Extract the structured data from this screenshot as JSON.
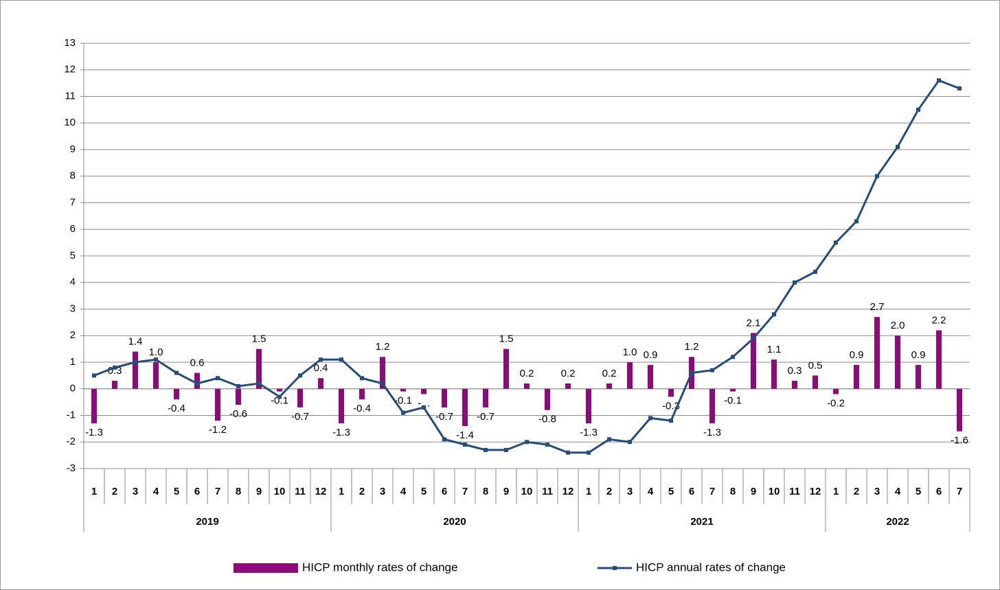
{
  "chart_data": {
    "type": "bar-line",
    "groups": [
      {
        "label": "2019",
        "categories": [
          "1",
          "2",
          "3",
          "4",
          "5",
          "6",
          "7",
          "8",
          "9",
          "10",
          "11",
          "12"
        ]
      },
      {
        "label": "2020",
        "categories": [
          "1",
          "2",
          "3",
          "4",
          "5",
          "6",
          "7",
          "8",
          "9",
          "10",
          "11",
          "12"
        ]
      },
      {
        "label": "2021",
        "categories": [
          "1",
          "2",
          "3",
          "4",
          "5",
          "6",
          "7",
          "8",
          "9",
          "10",
          "11",
          "12"
        ]
      },
      {
        "label": "2022",
        "categories": [
          "1",
          "2",
          "3",
          "4",
          "5",
          "6",
          "7"
        ]
      }
    ],
    "series": [
      {
        "name": "HICP monthly rates of change",
        "type": "bar",
        "color": "#8e0a7c",
        "values": [
          -1.3,
          0.3,
          1.4,
          1.0,
          -0.4,
          0.6,
          -1.2,
          -0.6,
          1.5,
          -0.1,
          -0.7,
          0.4,
          -1.3,
          -0.4,
          1.2,
          -0.1,
          -0.2,
          -0.7,
          -1.4,
          -0.7,
          1.5,
          0.2,
          -0.8,
          0.2,
          -1.3,
          0.2,
          1.0,
          0.9,
          -0.3,
          1.2,
          -1.3,
          -0.1,
          2.1,
          1.1,
          0.3,
          0.5,
          -0.2,
          0.9,
          2.7,
          2.0,
          0.9,
          2.2,
          -1.6
        ],
        "value_labels": [
          "-1.3",
          "0.3",
          "1.4",
          "1.0",
          "-0.4",
          "0.6",
          "-1.2",
          "-0.6",
          "1.5",
          "-0.1",
          "-0.7",
          "0.4",
          "-1.3",
          "-0.4",
          "1.2",
          "-0.1",
          "-...",
          "-0.7",
          "-1.4",
          "-0.7",
          "1.5",
          "0.2",
          "-0.8",
          "0.2",
          "-1.3",
          "0.2",
          "1.0",
          "0.9",
          "-0.3",
          "1.2",
          "-1.3",
          "-0.1",
          "2.1",
          "1.1",
          "0.3",
          "0.5",
          "-0.2",
          "0.9",
          "2.7",
          "2.0",
          "0.9",
          "2.2",
          "-1.6"
        ]
      },
      {
        "name": "HICP annual rates of change",
        "type": "line",
        "color": "#244c7c",
        "values": [
          0.5,
          0.8,
          1.0,
          1.1,
          0.6,
          0.2,
          0.4,
          0.1,
          0.2,
          -0.3,
          0.5,
          1.1,
          1.1,
          0.4,
          0.2,
          -0.9,
          -0.7,
          -1.9,
          -2.1,
          -2.3,
          -2.3,
          -2.0,
          -2.1,
          -2.4,
          -2.4,
          -1.9,
          -2.0,
          -1.1,
          -1.2,
          0.6,
          0.7,
          1.2,
          1.9,
          2.8,
          4.0,
          4.4,
          5.5,
          6.3,
          8.0,
          9.1,
          10.5,
          11.6,
          11.3
        ]
      }
    ],
    "ylim": [
      -3,
      13
    ],
    "yticks": [
      -3,
      -2,
      -1,
      0,
      1,
      2,
      3,
      4,
      5,
      6,
      7,
      8,
      9,
      10,
      11,
      12,
      13
    ],
    "grid": true
  }
}
